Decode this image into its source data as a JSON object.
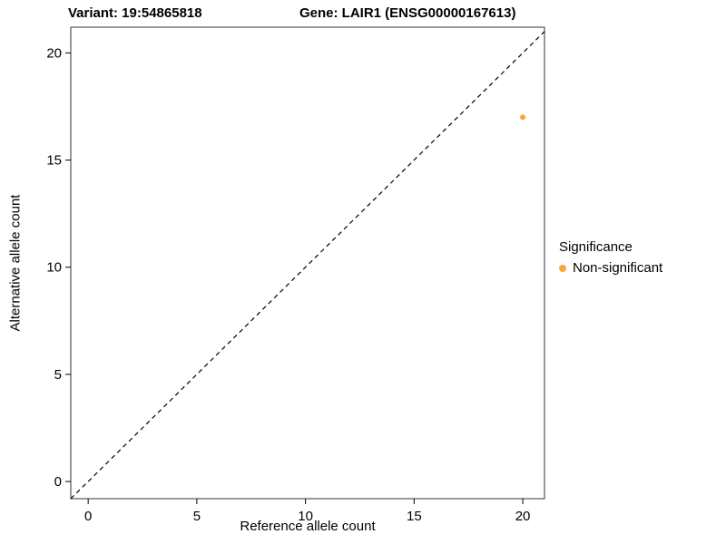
{
  "chart_data": {
    "type": "scatter",
    "title_left": "Variant: 19:54865818",
    "title_right": "Gene: LAIR1 (ENSG00000167613)",
    "xlabel": "Reference allele count",
    "ylabel": "Alternative allele count",
    "xlim": [
      -0.8,
      21
    ],
    "ylim": [
      -0.8,
      21.2
    ],
    "x_ticks": [
      0,
      5,
      10,
      15,
      20
    ],
    "y_ticks": [
      0,
      5,
      10,
      15,
      20
    ],
    "grid": false,
    "reference_line": {
      "style": "dashed",
      "slope": 1,
      "intercept": 0,
      "color": "#000000"
    },
    "points": [
      {
        "x": 20,
        "y": 17,
        "series": "Non-significant"
      }
    ],
    "series": [
      {
        "name": "Non-significant",
        "color": "#FAA43A"
      }
    ],
    "legend": {
      "title": "Significance",
      "position": "right",
      "entries": [
        {
          "label": "Non-significant",
          "color": "#FAA43A"
        }
      ]
    }
  }
}
